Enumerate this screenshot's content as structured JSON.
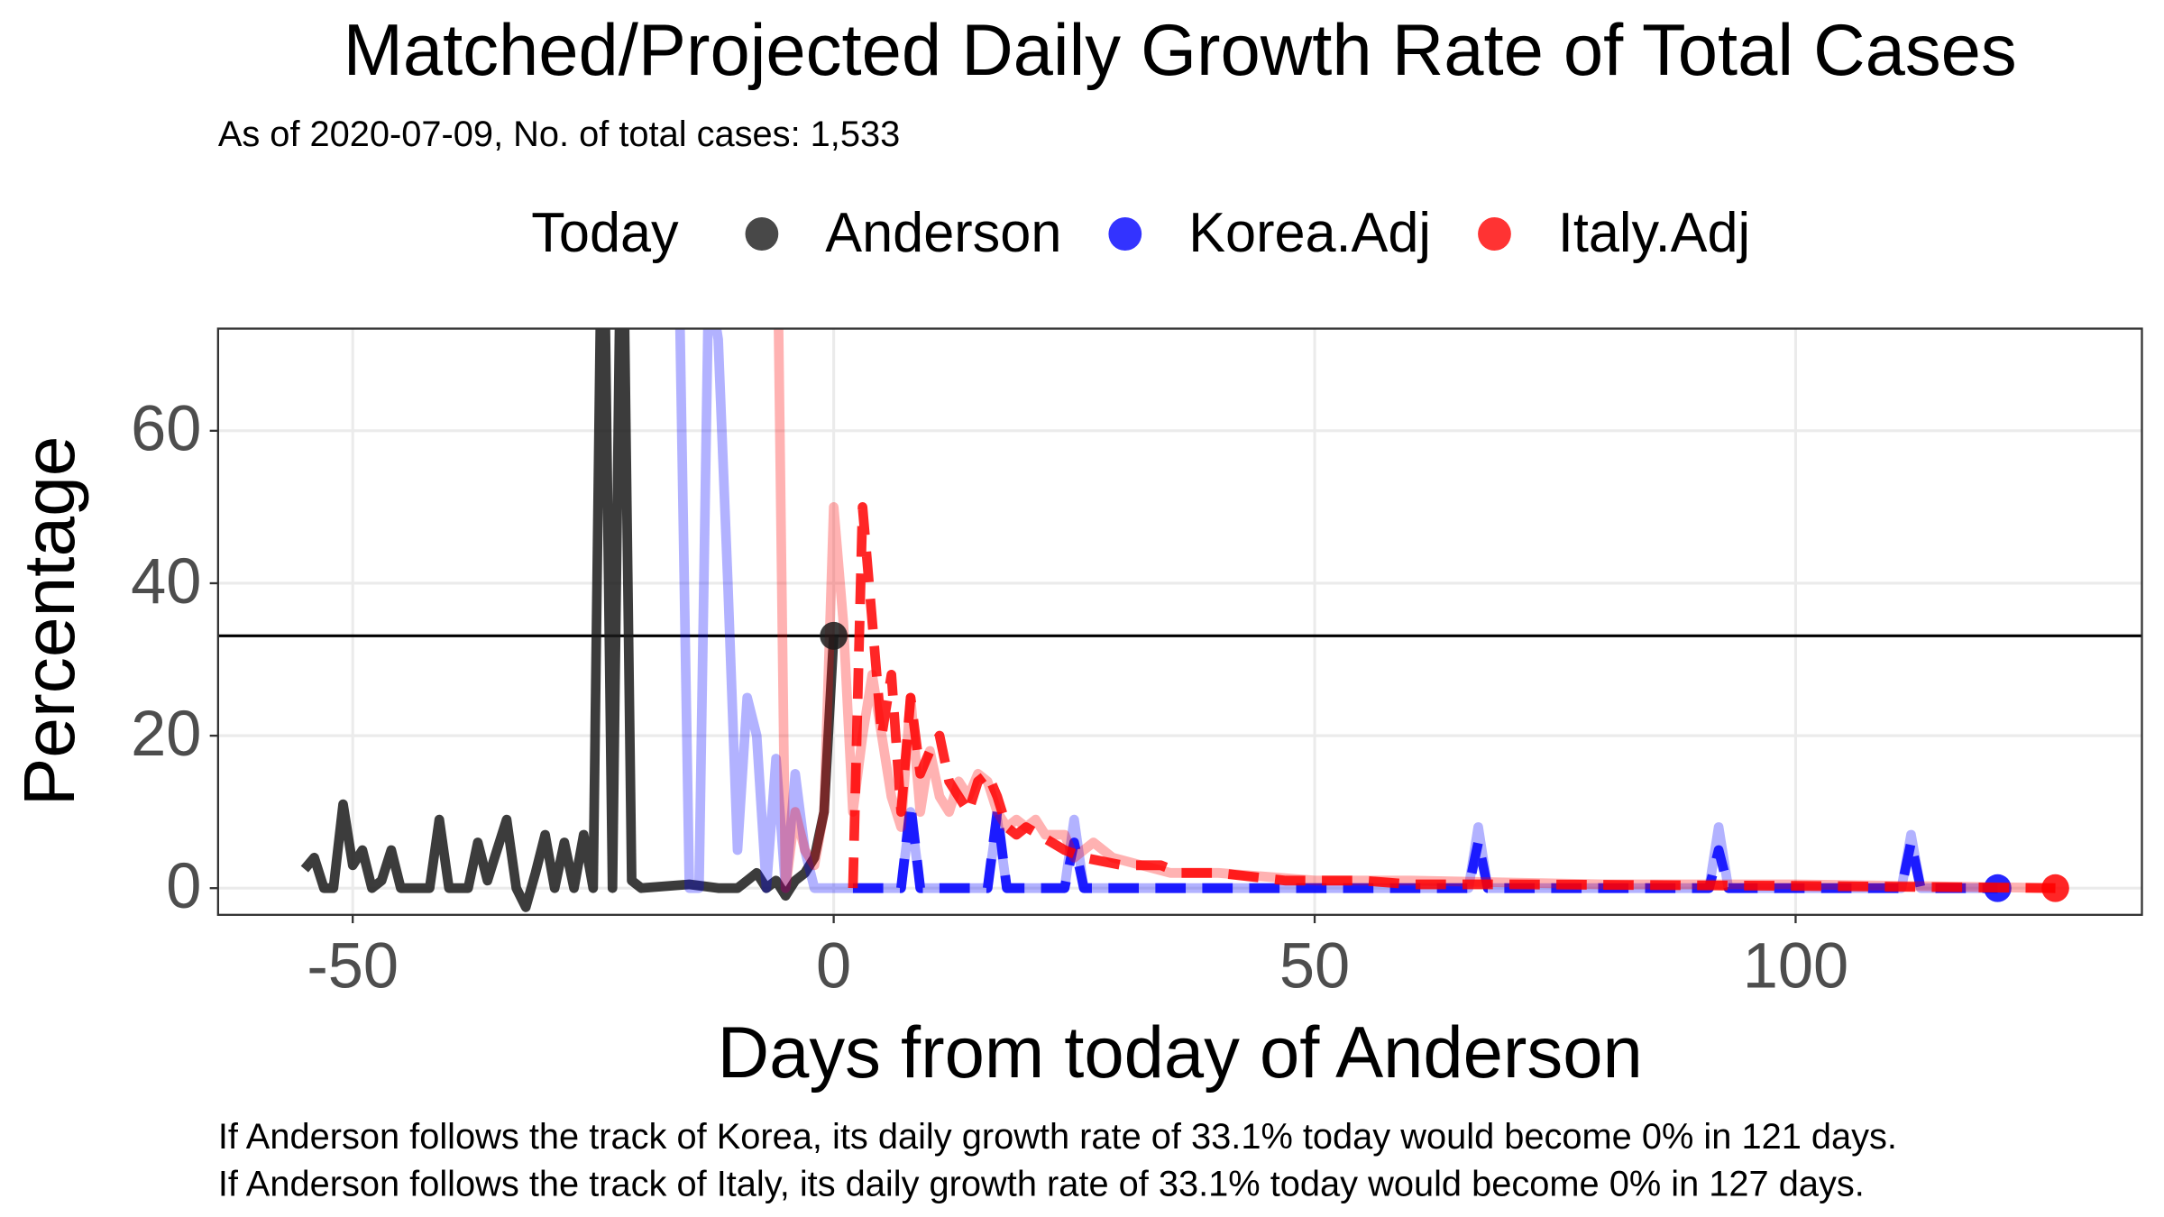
{
  "chart_data": {
    "type": "line",
    "title": "Matched/Projected Daily Growth Rate of Total Cases",
    "subtitle": "As of 2020-07-09, No. of total cases: 1,533",
    "legend_title": "Today",
    "x_label": "Days from today of Anderson",
    "y_label": "Percentage",
    "xlim": [
      -64,
      136
    ],
    "ylim": [
      -3.5,
      73.4
    ],
    "xticks": [
      -50,
      0,
      50,
      100
    ],
    "yticks": [
      0,
      20,
      40,
      60
    ],
    "grid": true,
    "hline": 33.1,
    "today": {
      "x": 0,
      "y": 33.1
    },
    "series": [
      {
        "name": "Anderson",
        "color": "#1a1a1a",
        "opacity": 0.85,
        "linestyle": "solid",
        "marker": "today",
        "x": [
          -55,
          -54,
          -53,
          -52,
          -51,
          -50,
          -49,
          -48,
          -47,
          -46,
          -45,
          -44,
          -43,
          -42,
          -41,
          -40,
          -39,
          -38,
          -37,
          -36,
          -35,
          -34,
          -33,
          -32,
          -31,
          -30,
          -29,
          -28,
          -27,
          -26,
          -25,
          -24,
          -23,
          -22,
          -21,
          -20,
          -15,
          -12,
          -10,
          -9,
          -8,
          -7,
          -6,
          -5,
          -4,
          -3,
          -2,
          -1,
          0
        ],
        "values": [
          2.5,
          4,
          0,
          0,
          11,
          3,
          5,
          0,
          1,
          5,
          0,
          0,
          0,
          0,
          9,
          0,
          0,
          0,
          6,
          1,
          5,
          9,
          0,
          -2.5,
          2,
          7,
          0,
          6,
          0,
          7,
          0,
          100,
          0,
          100,
          1,
          0,
          0.5,
          0,
          0,
          1,
          2,
          0,
          1,
          -1,
          1,
          2,
          4,
          10,
          33.1
        ]
      },
      {
        "name": "Korea.Adj",
        "color": "#0000ff",
        "opacity": 0.3,
        "linestyle": "solid",
        "x": [
          -16,
          -15,
          -14,
          -13,
          -12,
          -11,
          -10,
          -9,
          -8,
          -7,
          -6,
          -5,
          -4,
          -3,
          -2,
          7,
          8,
          9,
          16,
          17,
          18,
          24,
          25,
          26,
          66,
          67,
          68,
          91,
          92,
          93,
          111,
          112,
          113,
          121
        ],
        "values": [
          75,
          0,
          0,
          80,
          72,
          40,
          5,
          25,
          20,
          0,
          17,
          0,
          15,
          5,
          0,
          0,
          10,
          0,
          0,
          9,
          0,
          0,
          9,
          0,
          0,
          8,
          0,
          0,
          8,
          0,
          0,
          7,
          0,
          0
        ]
      },
      {
        "name": "Korea.Adj",
        "color": "#0000ff",
        "opacity": 0.85,
        "linestyle": "dashed",
        "marker": "end",
        "x": [
          2,
          7,
          8,
          9,
          16,
          17,
          18,
          24,
          25,
          26,
          66,
          67,
          68,
          91,
          92,
          93,
          111,
          112,
          113,
          121
        ],
        "values": [
          0,
          0,
          11,
          0,
          0,
          10,
          0,
          0,
          6,
          0,
          0,
          6,
          0,
          0,
          5,
          0,
          0,
          6,
          0,
          0
        ]
      },
      {
        "name": "Italy.Adj",
        "color": "#ff0000",
        "opacity": 0.3,
        "linestyle": "solid",
        "x": [
          -6,
          -5,
          -4,
          -3,
          -2,
          -1,
          0,
          1,
          2,
          3,
          4,
          5,
          6,
          7,
          8,
          9,
          10,
          11,
          12,
          13,
          14,
          15,
          16,
          17,
          18,
          19,
          20,
          21,
          22,
          24,
          25,
          27,
          29,
          32,
          35,
          40,
          50,
          60,
          80,
          100,
          127
        ],
        "values": [
          100,
          0,
          10,
          5,
          3,
          10,
          50,
          35,
          10,
          20,
          28,
          20,
          12,
          8,
          25,
          10,
          18,
          12,
          10,
          14,
          12,
          15,
          14,
          10,
          8,
          9,
          8,
          9,
          7,
          7,
          4,
          6,
          4,
          3,
          2,
          2,
          1,
          1,
          0.5,
          0.5,
          0
        ]
      },
      {
        "name": "Italy.Adj",
        "color": "#ff0000",
        "opacity": 0.85,
        "linestyle": "dashed",
        "marker": "end",
        "x": [
          2,
          3,
          4,
          5,
          6,
          7,
          8,
          9,
          10,
          11,
          12,
          13,
          14,
          15,
          16,
          17,
          18,
          19,
          20,
          24,
          26,
          30,
          34,
          36,
          40,
          47,
          55,
          60,
          70,
          100,
          127
        ],
        "values": [
          0,
          50,
          35,
          20,
          28,
          10,
          25,
          15,
          18,
          20,
          14,
          12,
          10,
          14,
          15,
          12,
          8,
          7,
          8,
          5,
          4,
          3,
          3,
          2,
          2,
          1,
          1,
          0.5,
          0.5,
          0.3,
          0
        ]
      }
    ],
    "notes": [
      "If Anderson follows the track of Korea, its daily growth rate of 33.1% today would become 0% in 121 days.",
      "If Anderson follows the track of Italy, its daily growth rate of 33.1% today would become 0% in 127 days."
    ]
  }
}
